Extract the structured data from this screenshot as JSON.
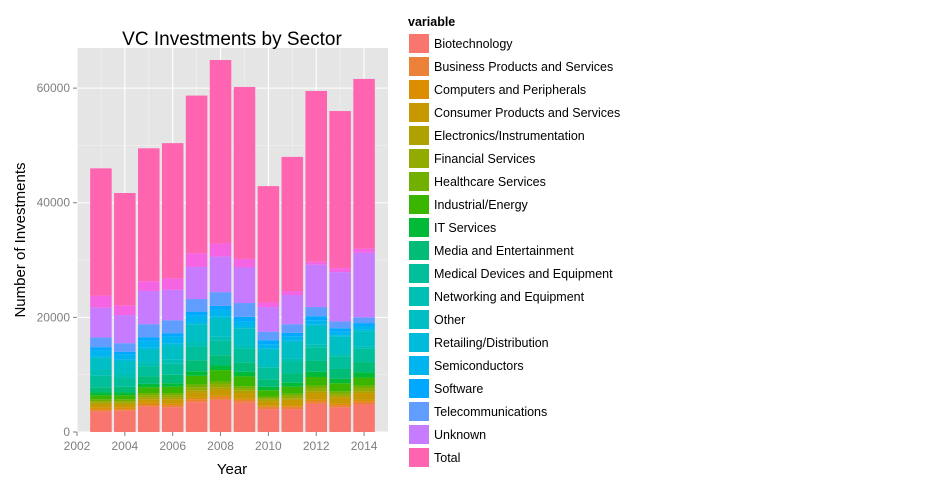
{
  "chart_data": {
    "type": "bar",
    "stacked": true,
    "title": "VC Investments by Sector",
    "xlabel": "Year",
    "ylabel": "Number of Investments",
    "legend_title": "variable",
    "legend_position": "right",
    "grid": true,
    "xlim": [
      2002,
      2015
    ],
    "ylim": [
      0,
      67000
    ],
    "x_ticks": [
      2002,
      2004,
      2006,
      2008,
      2010,
      2012,
      2014
    ],
    "x_tick_labels": [
      "2002",
      "2004",
      "2006",
      "2008",
      "2010",
      "2012",
      "2014"
    ],
    "y_ticks": [
      0,
      20000,
      40000,
      60000
    ],
    "y_tick_labels": [
      "0",
      "20000",
      "40000",
      "60000"
    ],
    "years": [
      2003,
      2004,
      2005,
      2006,
      2007,
      2008,
      2009,
      2010,
      2011,
      2012,
      2013,
      2014
    ],
    "series": [
      {
        "name": "Biotechnology",
        "color": "#F8766D",
        "values": [
          3600,
          3700,
          4400,
          4300,
          5200,
          5600,
          5100,
          4000,
          4000,
          4900,
          4300,
          4800
        ]
      },
      {
        "name": "Business Products and Services",
        "color": "#EC8239",
        "values": [
          300,
          300,
          400,
          400,
          500,
          500,
          500,
          400,
          400,
          500,
          400,
          500
        ]
      },
      {
        "name": "Computers and Peripherals",
        "color": "#DB8E00",
        "values": [
          400,
          300,
          300,
          300,
          300,
          300,
          300,
          200,
          300,
          300,
          300,
          300
        ]
      },
      {
        "name": "Consumer Products and Services",
        "color": "#C79800",
        "values": [
          500,
          500,
          600,
          700,
          900,
          1000,
          900,
          700,
          900,
          1100,
          1000,
          1200
        ]
      },
      {
        "name": "Electronics/Instrumentation",
        "color": "#AFA100",
        "values": [
          300,
          300,
          300,
          300,
          400,
          400,
          400,
          300,
          300,
          300,
          300,
          300
        ]
      },
      {
        "name": "Financial Services",
        "color": "#93AA00",
        "values": [
          300,
          300,
          400,
          400,
          500,
          500,
          400,
          300,
          400,
          500,
          400,
          500
        ]
      },
      {
        "name": "Healthcare Services",
        "color": "#72B000",
        "values": [
          300,
          300,
          400,
          400,
          500,
          500,
          400,
          300,
          400,
          500,
          400,
          500
        ]
      },
      {
        "name": "Industrial/Energy",
        "color": "#3BB600",
        "values": [
          700,
          700,
          1000,
          1100,
          1500,
          2000,
          1700,
          1100,
          1200,
          1500,
          1400,
          1400
        ]
      },
      {
        "name": "IT Services",
        "color": "#00BA38",
        "values": [
          500,
          500,
          600,
          600,
          800,
          800,
          800,
          600,
          700,
          900,
          800,
          900
        ]
      },
      {
        "name": "Media and Entertainment",
        "color": "#00BC77",
        "values": [
          900,
          1000,
          1300,
          1500,
          1900,
          1800,
          1600,
          1300,
          1600,
          1900,
          1700,
          1800
        ]
      },
      {
        "name": "Medical Devices and Equipment",
        "color": "#00BF9A",
        "values": [
          2000,
          1600,
          1800,
          1900,
          2400,
          2500,
          2400,
          2000,
          2100,
          2400,
          2200,
          2300
        ]
      },
      {
        "name": "Networking and Equipment",
        "color": "#00C0B5",
        "values": [
          1100,
          800,
          700,
          700,
          800,
          700,
          600,
          400,
          500,
          500,
          400,
          400
        ]
      },
      {
        "name": "Other",
        "color": "#00BFC4",
        "values": [
          2000,
          2000,
          2200,
          2500,
          3000,
          3200,
          3000,
          2800,
          2900,
          3200,
          3000,
          2700
        ]
      },
      {
        "name": "Retailing/Distribution",
        "color": "#00BBDB",
        "values": [
          300,
          300,
          300,
          400,
          400,
          400,
          300,
          200,
          300,
          300,
          300,
          300
        ]
      },
      {
        "name": "Semiconductors",
        "color": "#00B4EF",
        "values": [
          1000,
          900,
          1200,
          1100,
          1200,
          1100,
          900,
          700,
          700,
          700,
          600,
          600
        ]
      },
      {
        "name": "Software",
        "color": "#00A9FF",
        "values": [
          600,
          500,
          600,
          600,
          700,
          700,
          800,
          700,
          600,
          700,
          600,
          500
        ]
      },
      {
        "name": "Telecommunications",
        "color": "#619CFF",
        "values": [
          1700,
          1500,
          2300,
          2300,
          2200,
          2400,
          2400,
          1500,
          1500,
          1600,
          1200,
          1000
        ]
      },
      {
        "name": "Unknown",
        "color": "#C77CFF",
        "values": [
          5200,
          4900,
          5800,
          5300,
          5600,
          6200,
          6200,
          4300,
          5100,
          7400,
          8600,
          11300
        ]
      },
      {
        "name": "Total",
        "color": "#F564E3",
        "values": [
          2100,
          1700,
          1700,
          2000,
          2400,
          2300,
          1500,
          800,
          700,
          500,
          700,
          700
        ]
      },
      {
        "name": "",
        "color": "#FF64B0",
        "values": [
          22200,
          19600,
          23200,
          23600,
          27500,
          32000,
          30000,
          20300,
          23400,
          29800,
          27400,
          29600
        ]
      }
    ]
  }
}
